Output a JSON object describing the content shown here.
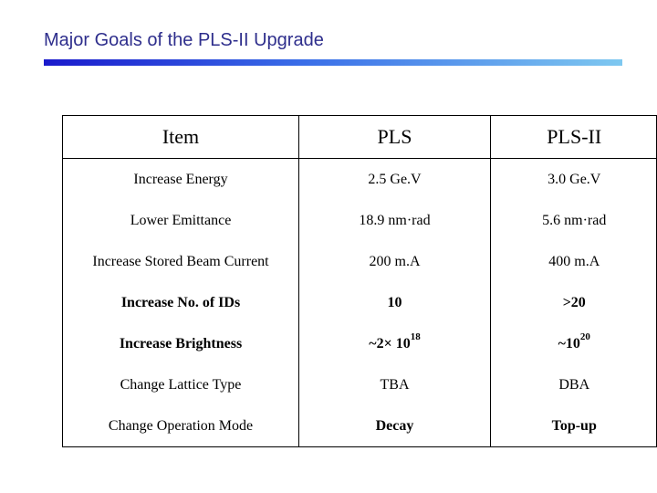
{
  "slide": {
    "title": "Major Goals of the PLS-II Upgrade",
    "title_color": "#2e2e8c",
    "bar_gradient": [
      "#1a1acc",
      "#3a6ee8",
      "#7ec8f0"
    ]
  },
  "table": {
    "headers": [
      "Item",
      "PLS",
      "PLS-II"
    ],
    "rows": [
      {
        "item": "Increase Energy",
        "pls": "2.5 Ge.V",
        "pls2": "3.0 Ge.V"
      },
      {
        "item": "Lower Emittance",
        "pls": "18.9 nm·rad",
        "pls2": "5.6 nm·rad"
      },
      {
        "item": "Increase Stored Beam Current",
        "pls": "200 m.A",
        "pls2": "400 m.A"
      },
      {
        "item": "Increase No. of IDs",
        "pls": "10",
        "pls2": ">20"
      },
      {
        "item": "Increase Brightness",
        "pls_base": "~2× 10",
        "pls_exp": "18",
        "pls2_base": "~10",
        "pls2_exp": "20"
      },
      {
        "item": "Change Lattice Type",
        "pls": "TBA",
        "pls2": "DBA"
      },
      {
        "item": "Change Operation Mode",
        "pls": "Decay",
        "pls2": "Top-up"
      }
    ]
  }
}
